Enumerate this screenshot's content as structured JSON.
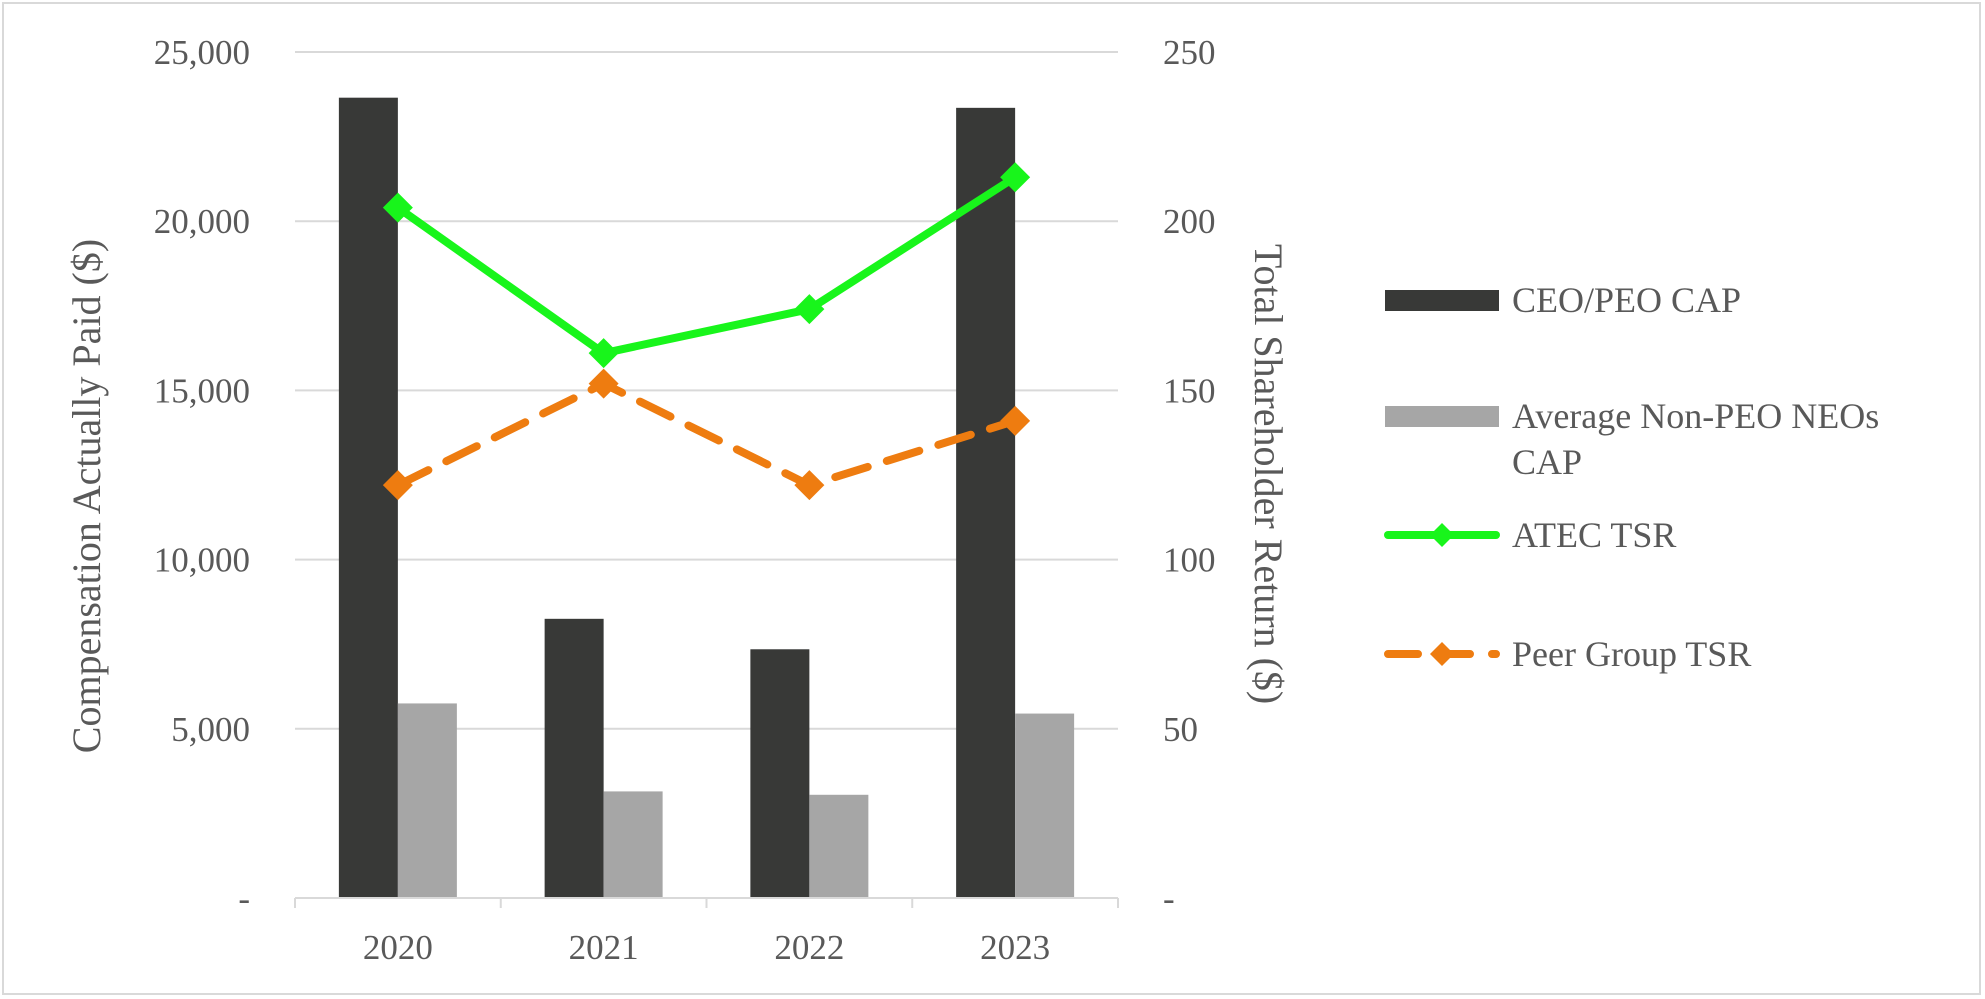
{
  "chart_data": {
    "type": "bar",
    "categories": [
      "2020",
      "2021",
      "2022",
      "2023"
    ],
    "series": [
      {
        "name": "CEO/PEO CAP",
        "kind": "bar",
        "axis": "left",
        "color": "#383937",
        "values": [
          23650,
          8250,
          7350,
          23350
        ]
      },
      {
        "name": "Average Non-PEO NEOs CAP",
        "kind": "bar",
        "axis": "left",
        "color": "#a6a6a6",
        "values": [
          5750,
          3150,
          3050,
          5450
        ]
      },
      {
        "name": "ATEC TSR",
        "kind": "line",
        "axis": "right",
        "color": "#18f51b",
        "style": "solid",
        "values": [
          204,
          161,
          174,
          213
        ]
      },
      {
        "name": "Peer Group TSR",
        "kind": "line",
        "axis": "right",
        "color": "#ee7c10",
        "style": "dashed",
        "values": [
          122,
          152,
          122,
          141
        ]
      }
    ],
    "left_axis": {
      "label": "Compensation Actually Paid ($)",
      "range": [
        0,
        25000
      ],
      "ticks": [
        0,
        5000,
        10000,
        15000,
        20000,
        25000
      ],
      "tick_labels": [
        "-",
        "5,000",
        "10,000",
        "15,000",
        "20,000",
        "25,000"
      ]
    },
    "right_axis": {
      "label": "Total Shareholder Return ($)",
      "range": [
        0,
        250
      ],
      "ticks": [
        0,
        50,
        100,
        150,
        200,
        250
      ],
      "tick_labels": [
        "-",
        "50",
        "100",
        "150",
        "200",
        "250"
      ]
    },
    "legend": {
      "position": "right",
      "entries": [
        {
          "label_lines": [
            "CEO/PEO CAP"
          ]
        },
        {
          "label_lines": [
            "Average Non-PEO NEOs",
            "CAP"
          ]
        },
        {
          "label_lines": [
            "ATEC TSR"
          ]
        },
        {
          "label_lines": [
            "Peer Group TSR"
          ]
        }
      ]
    },
    "gridlines": true
  }
}
